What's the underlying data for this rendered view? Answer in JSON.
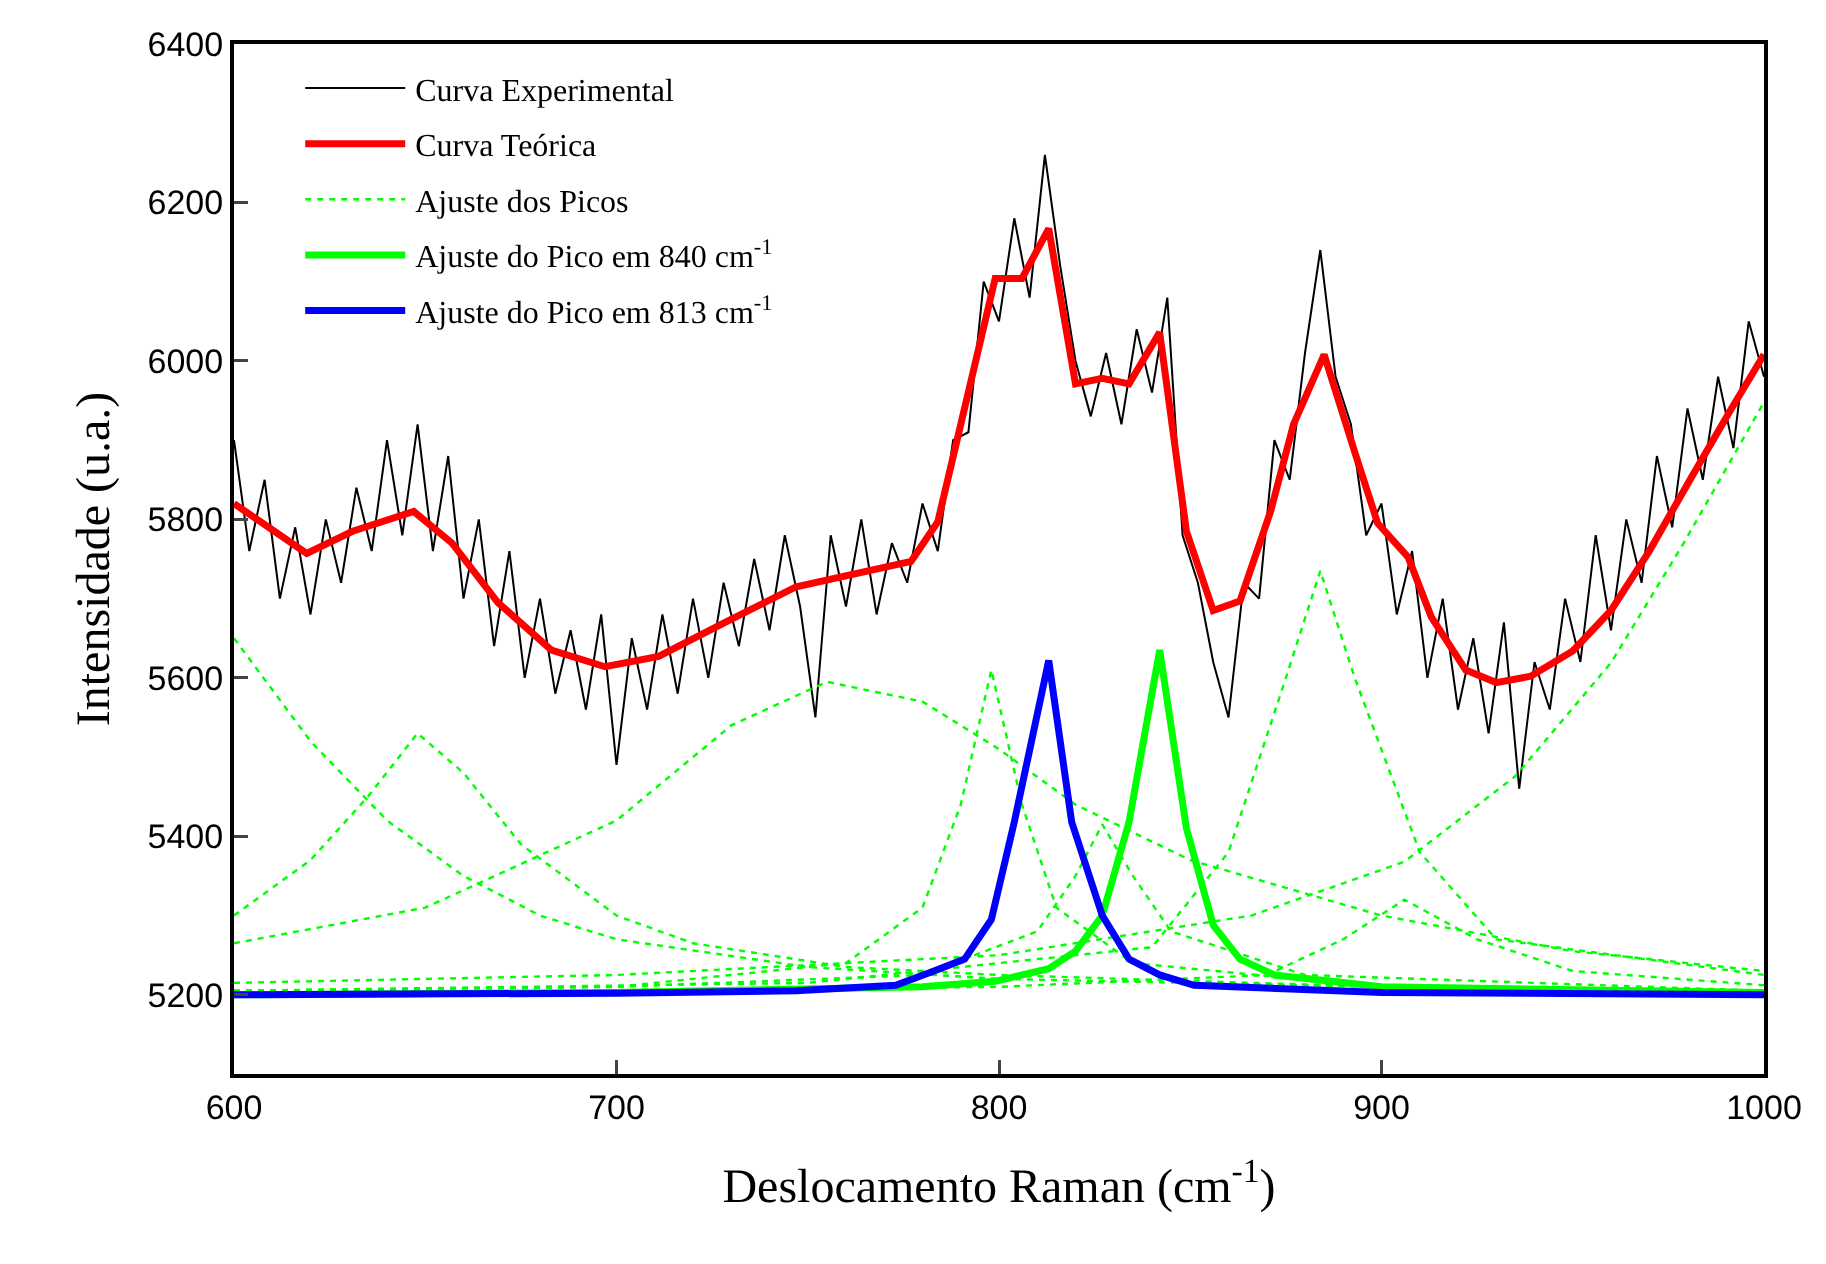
{
  "chart_data": {
    "type": "line",
    "xlabel": "Deslocamento Raman (cm$^{-1}$)",
    "ylabel": "Intensidade (u.a.)",
    "xlim": [
      600,
      1000
    ],
    "xticks": [
      600,
      700,
      800,
      900,
      1000
    ],
    "ylim": [
      5100,
      6400
    ],
    "yticks": [
      5200,
      5400,
      5600,
      5800,
      6000,
      6200,
      6400
    ],
    "grid": false,
    "legend": "top left",
    "marker": "none",
    "series": [
      {
        "name": "Curva Experimental",
        "color": "#000000",
        "line_style": "solid",
        "x": [
          600,
          604,
          608,
          612,
          616,
          620,
          624,
          628,
          632,
          636,
          640,
          644,
          648,
          652,
          656,
          660,
          664,
          668,
          672,
          676,
          680,
          684,
          688,
          692,
          696,
          700,
          704,
          708,
          712,
          716,
          720,
          724,
          728,
          732,
          736,
          740,
          744,
          748,
          752,
          756,
          760,
          764,
          768,
          772,
          776,
          780,
          784,
          788,
          792,
          796,
          800,
          804,
          808,
          812,
          816,
          820,
          824,
          828,
          832,
          836,
          840,
          844,
          848,
          852,
          856,
          860,
          864,
          868,
          872,
          876,
          880,
          884,
          888,
          892,
          896,
          900,
          904,
          908,
          912,
          916,
          920,
          924,
          928,
          932,
          936,
          940,
          944,
          948,
          952,
          956,
          960,
          964,
          968,
          972,
          976,
          980,
          984,
          988,
          992,
          996,
          1000
        ],
        "values": [
          5900,
          5760,
          5850,
          5700,
          5790,
          5680,
          5800,
          5720,
          5840,
          5760,
          5900,
          5780,
          5920,
          5760,
          5880,
          5700,
          5800,
          5640,
          5760,
          5600,
          5700,
          5580,
          5660,
          5560,
          5680,
          5490,
          5650,
          5560,
          5680,
          5580,
          5700,
          5600,
          5720,
          5640,
          5750,
          5660,
          5780,
          5690,
          5550,
          5780,
          5690,
          5800,
          5680,
          5770,
          5720,
          5820,
          5760,
          5900,
          5910,
          6100,
          6050,
          6180,
          6080,
          6260,
          6120,
          6000,
          5930,
          6010,
          5920,
          6040,
          5960,
          6080,
          5780,
          5720,
          5620,
          5550,
          5720,
          5700,
          5900,
          5850,
          6010,
          6140,
          5980,
          5920,
          5780,
          5820,
          5680,
          5760,
          5600,
          5700,
          5560,
          5650,
          5530,
          5670,
          5460,
          5620,
          5560,
          5700,
          5620,
          5780,
          5660,
          5800,
          5720,
          5880,
          5790,
          5940,
          5850,
          5980,
          5890,
          6050,
          5980
        ]
      },
      {
        "name": "Curva Teórica",
        "color": "#ff0000",
        "line_style": "solid",
        "x": [
          600,
          619,
          631,
          647,
          657,
          669,
          683,
          697,
          711,
          728,
          747,
          777,
          784,
          799,
          806,
          813,
          820,
          827,
          834,
          842,
          849,
          856,
          863,
          871,
          877,
          885,
          893,
          899,
          907,
          913,
          922,
          930,
          939,
          950,
          960,
          970,
          981,
          991,
          1000
        ],
        "values": [
          5820,
          5757,
          5785,
          5810,
          5770,
          5695,
          5635,
          5614,
          5627,
          5669,
          5715,
          5747,
          5797,
          6104,
          6104,
          6167,
          5971,
          5978,
          5971,
          6036,
          5785,
          5685,
          5697,
          5810,
          5920,
          6008,
          5885,
          5795,
          5752,
          5677,
          5610,
          5594,
          5602,
          5634,
          5685,
          5760,
          5853,
          5936,
          6008
        ]
      },
      {
        "name": "Ajuste dos Picos",
        "color": "#00ff00",
        "line_style": "dotted",
        "x": [
          600,
          620,
          640,
          660,
          680,
          700,
          750,
          800,
          900,
          1000
        ],
        "values": [
          5650,
          5520,
          5420,
          5350,
          5300,
          5270,
          5235,
          5220,
          5210,
          5205
        ]
      },
      {
        "color": "#00ff00",
        "line_style": "dotted",
        "x": [
          600,
          620,
          635,
          648,
          660,
          675,
          700,
          720,
          760,
          800,
          900,
          1000
        ],
        "values": [
          5300,
          5370,
          5450,
          5530,
          5480,
          5390,
          5300,
          5265,
          5235,
          5225,
          5210,
          5205
        ]
      },
      {
        "color": "#00ff00",
        "line_style": "dotted",
        "x": [
          600,
          650,
          700,
          730,
          755,
          780,
          800,
          820,
          850,
          900,
          950,
          1000
        ],
        "values": [
          5265,
          5310,
          5420,
          5540,
          5595,
          5570,
          5510,
          5440,
          5370,
          5300,
          5255,
          5230
        ]
      },
      {
        "color": "#00ff00",
        "line_style": "dotted",
        "x": [
          600,
          700,
          760,
          780,
          790,
          798,
          806,
          815,
          835,
          900,
          1000
        ],
        "values": [
          5205,
          5210,
          5240,
          5310,
          5440,
          5610,
          5440,
          5310,
          5240,
          5210,
          5205
        ]
      },
      {
        "color": "#00ff00",
        "line_style": "dotted",
        "x": [
          600,
          700,
          780,
          810,
          820,
          827,
          835,
          845,
          880,
          1000
        ],
        "values": [
          5205,
          5210,
          5225,
          5280,
          5350,
          5415,
          5350,
          5280,
          5225,
          5205
        ]
      },
      {
        "color": "#00ff00",
        "line_style": "dotted",
        "x": [
          600,
          750,
          840,
          860,
          875,
          884,
          893,
          910,
          930,
          1000
        ],
        "values": [
          5205,
          5215,
          5260,
          5380,
          5600,
          5735,
          5600,
          5380,
          5270,
          5225
        ]
      },
      {
        "color": "#00ff00",
        "line_style": "dotted",
        "x": [
          600,
          800,
          870,
          890,
          906,
          925,
          950,
          1000
        ],
        "values": [
          5202,
          5210,
          5225,
          5270,
          5320,
          5270,
          5230,
          5212
        ]
      },
      {
        "color": "#00ff00",
        "line_style": "dotted",
        "x": [
          600,
          700,
          800,
          866,
          906,
          935,
          960,
          979,
          1000
        ],
        "values": [
          5215,
          5225,
          5250,
          5300,
          5368,
          5476,
          5619,
          5770,
          5948
        ]
      },
      {
        "name": "Ajuste do Pico em 840 cm$^{-1}$",
        "color": "#00ff00",
        "line_style": "solid",
        "x": [
          600,
          700,
          780,
          799,
          813,
          820,
          827,
          834,
          842,
          849,
          856,
          863,
          872,
          900,
          1000
        ],
        "values": [
          5200,
          5203,
          5210,
          5217,
          5233,
          5255,
          5300,
          5418,
          5635,
          5410,
          5288,
          5245,
          5225,
          5210,
          5203
        ]
      },
      {
        "name": "Ajuste do Pico em 813 cm$^{-1}$",
        "color": "#0000ff",
        "line_style": "solid",
        "x": [
          600,
          700,
          747,
          773,
          783,
          791,
          798,
          804,
          813,
          819,
          827,
          834,
          842,
          851,
          900,
          1000
        ],
        "values": [
          5200,
          5202,
          5205,
          5212,
          5230,
          5245,
          5295,
          5418,
          5622,
          5418,
          5300,
          5245,
          5225,
          5212,
          5203,
          5200
        ]
      }
    ]
  }
}
